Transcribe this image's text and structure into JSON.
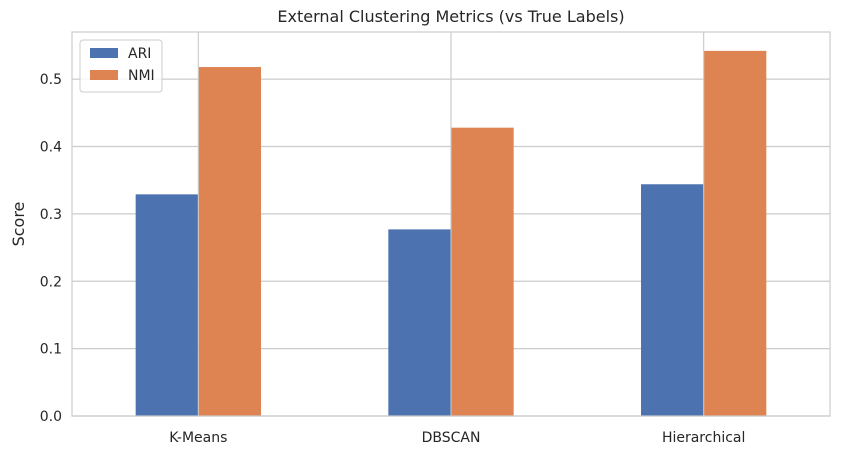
{
  "chart_data": {
    "type": "bar",
    "title": "External Clustering Metrics (vs True Labels)",
    "xlabel": "",
    "ylabel": "Score",
    "categories": [
      "K-Means",
      "DBSCAN",
      "Hierarchical"
    ],
    "series": [
      {
        "name": "ARI",
        "color": "#4c72b0",
        "values": [
          0.329,
          0.277,
          0.344
        ]
      },
      {
        "name": "NMI",
        "color": "#dd8452",
        "values": [
          0.518,
          0.428,
          0.542
        ]
      }
    ],
    "ylim": [
      0,
      0.57
    ],
    "yticks": [
      0.0,
      0.1,
      0.2,
      0.3,
      0.4,
      0.5
    ],
    "ytick_labels": [
      "0.0",
      "0.1",
      "0.2",
      "0.3",
      "0.4",
      "0.5"
    ],
    "grid": true,
    "legend_position": "top-left"
  }
}
